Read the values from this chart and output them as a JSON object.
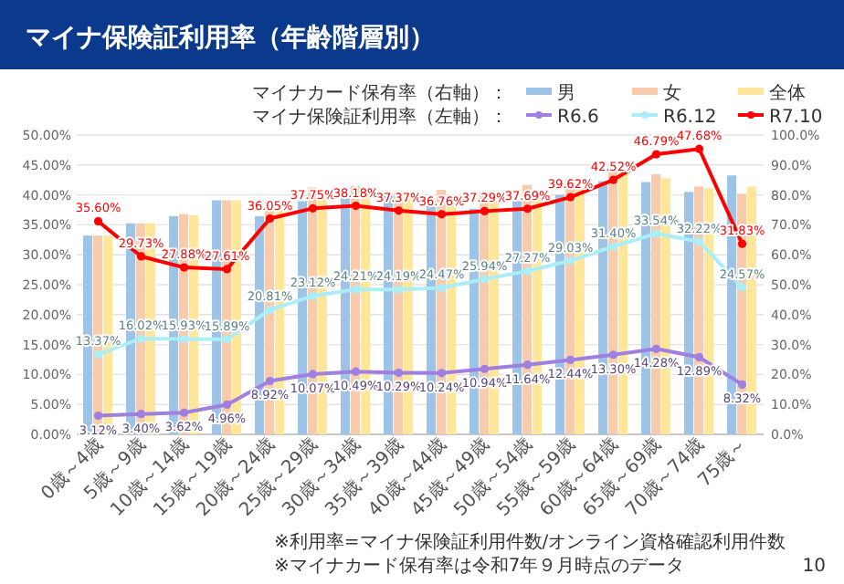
{
  "chart_data": {
    "type": "bar",
    "title": "マイナ保険証利用率（年齢階層別）",
    "categories": [
      "0歳～4歳",
      "5歳～9歳",
      "10歳～14歳",
      "15歳～19歳",
      "20歳～24歳",
      "25歳～29歳",
      "30歳～34歳",
      "35歳～39歳",
      "40歳～44歳",
      "45歳～49歳",
      "50歳～54歳",
      "55歳～59歳",
      "60歳～64歳",
      "65歳～69歳",
      "70歳～74歳",
      "75歳～"
    ],
    "series": [
      {
        "name": "男",
        "axis": "y2",
        "color": "#9dc3e6",
        "values": [
          66.4,
          70.5,
          72.9,
          78.2,
          72.9,
          77.9,
          79.7,
          79.7,
          78,
          75.4,
          78,
          80,
          84.6,
          84.3,
          81,
          86.5
        ]
      },
      {
        "name": "女",
        "axis": "y2",
        "color": "#f8cbad",
        "values": [
          66.4,
          70.5,
          73.6,
          78.2,
          77.9,
          82.5,
          83,
          80.6,
          81.7,
          81,
          83.3,
          85.2,
          88.3,
          86.9,
          82.8,
          80.4
        ]
      },
      {
        "name": "全体",
        "axis": "y2",
        "color": "#ffe699",
        "values": [
          66.4,
          70.5,
          73.2,
          78.2,
          75.1,
          79.7,
          80.6,
          78.8,
          78.5,
          78,
          81.3,
          82.8,
          87.4,
          85.6,
          82.2,
          82.8
        ]
      },
      {
        "name": "R6.6",
        "type": "line",
        "axis": "y",
        "color": "#9f7fe0",
        "values": [
          3.12,
          3.4,
          3.62,
          4.96,
          8.92,
          10.07,
          10.49,
          10.29,
          10.24,
          10.94,
          11.64,
          12.44,
          13.3,
          14.28,
          12.89,
          8.32
        ],
        "value_labels": [
          "3.12%",
          "3.40%",
          "3.62%",
          "4.96%",
          "8.92%",
          "10.07%",
          "10.49%",
          "10.29%",
          "10.24%",
          "10.94%",
          "11.64%",
          "12.44%",
          "13.30%",
          "14.28%",
          "12.89%",
          "8.32%"
        ]
      },
      {
        "name": "R6.12",
        "type": "line",
        "axis": "y",
        "color": "#a9eef8",
        "values": [
          13.37,
          16.02,
          15.93,
          15.89,
          20.81,
          23.12,
          24.21,
          24.19,
          24.47,
          25.94,
          27.27,
          29.03,
          31.4,
          33.54,
          32.22,
          24.57
        ],
        "value_labels": [
          "13.37%",
          "16.02%",
          "15.93%",
          "15.89%",
          "20.81%",
          "23.12%",
          "24.21%",
          "24.19%",
          "24.47%",
          "25.94%",
          "27.27%",
          "29.03%",
          "31.40%",
          "33.54%",
          "32.22%",
          "24.57%"
        ]
      },
      {
        "name": "R7.10",
        "type": "line",
        "axis": "y",
        "color": "#ff0000",
        "values": [
          35.6,
          29.73,
          27.88,
          27.61,
          36.05,
          37.75,
          38.18,
          37.37,
          36.76,
          37.29,
          37.69,
          39.62,
          42.52,
          46.79,
          47.68,
          31.83
        ],
        "value_labels": [
          "35.60%",
          "29.73%",
          "27.88%",
          "27.61%",
          "36.05%",
          "37.75%",
          "38.18%",
          "37.37%",
          "36.76%",
          "37.29%",
          "37.69%",
          "39.62%",
          "42.52%",
          "46.79%",
          "47.68%",
          "31.83%"
        ]
      }
    ],
    "ylim": [
      0,
      50
    ],
    "yticks": [
      {
        "value": 0,
        "label": "0.00%"
      },
      {
        "value": 5,
        "label": "5.00%"
      },
      {
        "value": 10,
        "label": "10.00%"
      },
      {
        "value": 15,
        "label": "15.00%"
      },
      {
        "value": 20,
        "label": "20.00%"
      },
      {
        "value": 25,
        "label": "25.00%"
      },
      {
        "value": 30,
        "label": "30.00%"
      },
      {
        "value": 35,
        "label": "35.00%"
      },
      {
        "value": 40,
        "label": "40.00%"
      },
      {
        "value": 45,
        "label": "45.00%"
      },
      {
        "value": 50,
        "label": "50.00%"
      }
    ],
    "y2lim": [
      0,
      100
    ],
    "y2ticks": [
      {
        "value": 0,
        "label": "0.0%"
      },
      {
        "value": 10,
        "label": "10.0%"
      },
      {
        "value": 20,
        "label": "20.0%"
      },
      {
        "value": 30,
        "label": "30.0%"
      },
      {
        "value": 40,
        "label": "40.0%"
      },
      {
        "value": 50,
        "label": "50.0%"
      },
      {
        "value": 60,
        "label": "60.0%"
      },
      {
        "value": 70,
        "label": "70.0%"
      },
      {
        "value": 80,
        "label": "80.0%"
      },
      {
        "value": 90,
        "label": "90.0%"
      },
      {
        "value": 100,
        "label": "100.0%"
      }
    ],
    "grid": "y",
    "legend": "top right",
    "marker": "circle",
    "annotations": [
      "マイナカード保有率（右軸）：",
      "マイナ保険証利用率（左軸）：",
      "※利用率=マイナ保険証利用件数/オンライン資格確認利用件数",
      "※マイナカード保有率は令和7年９月時点のデータ",
      "10"
    ]
  }
}
